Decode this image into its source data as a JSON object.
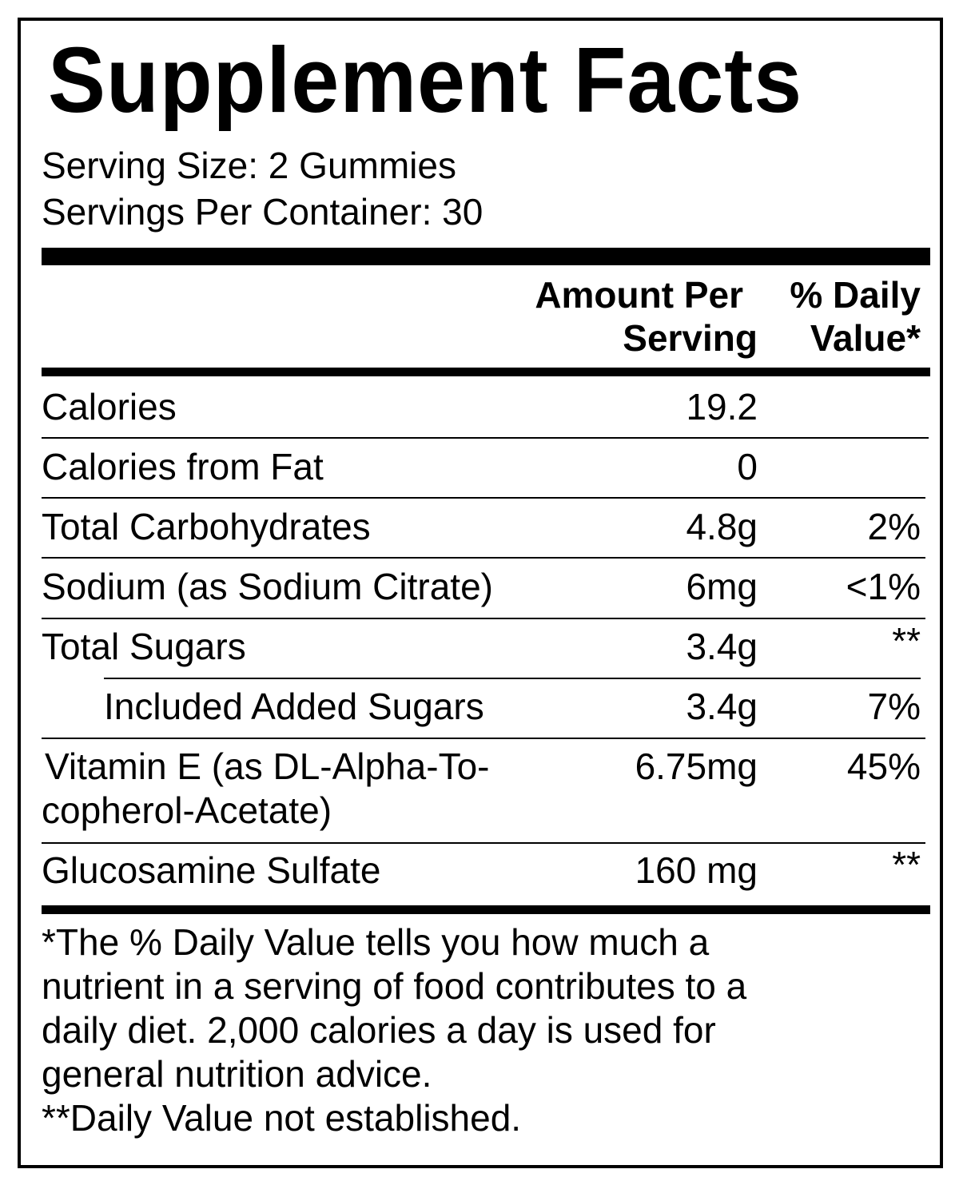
{
  "title": "Supplement Facts",
  "serving_size": "Serving Size: 2 Gummies",
  "servings_per_container": "Servings Per Container: 30",
  "header": {
    "amount_line1": "Amount Per",
    "amount_line2": "Serving",
    "dv_line1": "% Daily",
    "dv_line2": "Value*"
  },
  "rows": [
    {
      "name": "Calories",
      "amount": "19.2",
      "dv": ""
    },
    {
      "name": "Calories from Fat",
      "amount": "0",
      "dv": ""
    },
    {
      "name": "Total Carbohydrates",
      "amount": "4.8g",
      "dv": "2%"
    },
    {
      "name": "Sodium (as Sodium Citrate)",
      "amount": "6mg",
      "dv": "<1%"
    },
    {
      "name": "Total Sugars",
      "amount": "3.4g",
      "dv": "**"
    },
    {
      "name": "Included Added Sugars",
      "amount": "3.4g",
      "dv": "7%"
    },
    {
      "name": "Vitamin E (as DL-Alpha-To-",
      "name_line2": "copherol-Acetate)",
      "amount": "6.75mg",
      "dv": "45%"
    },
    {
      "name": "Glucosamine Sulfate",
      "amount": "160 mg",
      "dv": "**"
    }
  ],
  "footnotes": [
    "*The % Daily Value tells you how much a",
    "nutrient in a serving of food contributes to a",
    "daily diet. 2,000 calories a day is used for",
    "general nutrition advice.",
    "**Daily Value not established."
  ]
}
